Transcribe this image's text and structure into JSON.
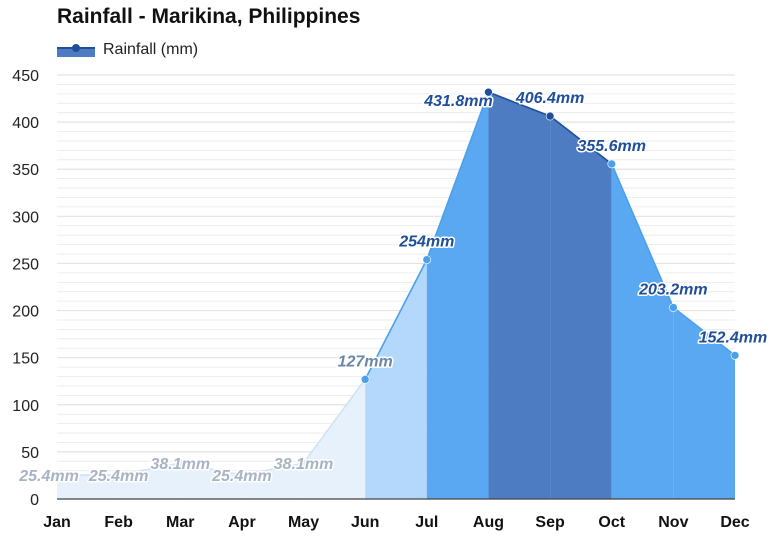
{
  "chart_data": {
    "type": "area",
    "title": "Rainfall - Marikina, Philippines",
    "xlabel": "",
    "ylabel": "",
    "categories": [
      "Jan",
      "Feb",
      "Mar",
      "Apr",
      "May",
      "Jun",
      "Jul",
      "Aug",
      "Sep",
      "Oct",
      "Nov",
      "Dec"
    ],
    "series": [
      {
        "name": "Rainfall (mm)",
        "values": [
          25.4,
          25.4,
          38.1,
          25.4,
          38.1,
          127,
          254,
          431.8,
          406.4,
          355.6,
          203.2,
          152.4
        ],
        "labels": [
          "25.4mm",
          "25.4mm",
          "38.1mm",
          "25.4mm",
          "38.1mm",
          "127mm",
          "254mm",
          "431.8mm",
          "406.4mm",
          "355.6mm",
          "203.2mm",
          "152.4mm"
        ]
      }
    ],
    "yticks": [
      "0",
      "50",
      "100",
      "150",
      "200",
      "250",
      "300",
      "350",
      "400",
      "450"
    ],
    "ylim": [
      0,
      450
    ],
    "grid": true,
    "legend": "top-left",
    "colors": {
      "very_light": "#e6f1fc",
      "light": "#b3d8fb",
      "medium": "#5ba8f2",
      "dark": "#4d7cc3",
      "line_light": "#cfe2f7",
      "line_medium": "#4aa0ea",
      "line_dark": "#1f4e9a",
      "label_light": "#a8b3c4",
      "label_medium": "#6b86a8",
      "label_dark": "#1f4e9a",
      "grid": "#e3e3e3"
    }
  }
}
